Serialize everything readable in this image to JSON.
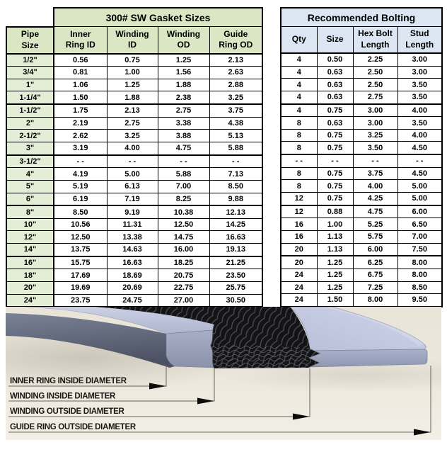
{
  "gasket_table": {
    "title": "300# SW Gasket Sizes",
    "headers": [
      [
        "Pipe",
        "Size"
      ],
      [
        "Inner",
        "Ring ID"
      ],
      [
        "Winding",
        "ID"
      ],
      [
        "Winding",
        "OD"
      ],
      [
        "Guide",
        "Ring OD"
      ]
    ],
    "rows": [
      [
        "1/2\"",
        "0.56",
        "0.75",
        "1.25",
        "2.13"
      ],
      [
        "3/4\"",
        "0.81",
        "1.00",
        "1.56",
        "2.63"
      ],
      [
        "1\"",
        "1.06",
        "1.25",
        "1.88",
        "2.88"
      ],
      [
        "1-1/4\"",
        "1.50",
        "1.88",
        "2.38",
        "3.25"
      ],
      [
        "1-1/2\"",
        "1.75",
        "2.13",
        "2.75",
        "3.75"
      ],
      [
        "2\"",
        "2.19",
        "2.75",
        "3.38",
        "4.38"
      ],
      [
        "2-1/2\"",
        "2.62",
        "3.25",
        "3.88",
        "5.13"
      ],
      [
        "3\"",
        "3.19",
        "4.00",
        "4.75",
        "5.88"
      ],
      [
        "3-1/2\"",
        "- -",
        "- -",
        "- -",
        "- -"
      ],
      [
        "4\"",
        "4.19",
        "5.00",
        "5.88",
        "7.13"
      ],
      [
        "5\"",
        "5.19",
        "6.13",
        "7.00",
        "8.50"
      ],
      [
        "6\"",
        "6.19",
        "7.19",
        "8.25",
        "9.88"
      ],
      [
        "8\"",
        "8.50",
        "9.19",
        "10.38",
        "12.13"
      ],
      [
        "10\"",
        "10.56",
        "11.31",
        "12.50",
        "14.25"
      ],
      [
        "12\"",
        "12.50",
        "13.38",
        "14.75",
        "16.63"
      ],
      [
        "14\"",
        "13.75",
        "14.63",
        "16.00",
        "19.13"
      ],
      [
        "16\"",
        "15.75",
        "16.63",
        "18.25",
        "21.25"
      ],
      [
        "18\"",
        "17.69",
        "18.69",
        "20.75",
        "23.50"
      ],
      [
        "20\"",
        "19.69",
        "20.69",
        "22.75",
        "25.75"
      ],
      [
        "24\"",
        "23.75",
        "24.75",
        "27.00",
        "30.50"
      ]
    ]
  },
  "bolting_table": {
    "title": "Recommended Bolting",
    "headers": [
      [
        "Qty"
      ],
      [
        "Size"
      ],
      [
        "Hex Bolt",
        "Length"
      ],
      [
        "Stud",
        "Length"
      ]
    ],
    "rows": [
      [
        "4",
        "0.50",
        "2.25",
        "3.00"
      ],
      [
        "4",
        "0.63",
        "2.50",
        "3.00"
      ],
      [
        "4",
        "0.63",
        "2.50",
        "3.50"
      ],
      [
        "4",
        "0.63",
        "2.75",
        "3.50"
      ],
      [
        "4",
        "0.75",
        "3.00",
        "4.00"
      ],
      [
        "8",
        "0.63",
        "3.00",
        "3.50"
      ],
      [
        "8",
        "0.75",
        "3.25",
        "4.00"
      ],
      [
        "8",
        "0.75",
        "3.50",
        "4.50"
      ],
      [
        "- -",
        "- -",
        "- -",
        "- -"
      ],
      [
        "8",
        "0.75",
        "3.75",
        "4.50"
      ],
      [
        "8",
        "0.75",
        "4.00",
        "5.00"
      ],
      [
        "12",
        "0.75",
        "4.25",
        "5.00"
      ],
      [
        "12",
        "0.88",
        "4.75",
        "6.00"
      ],
      [
        "16",
        "1.00",
        "5.25",
        "6.50"
      ],
      [
        "16",
        "1.13",
        "5.75",
        "7.00"
      ],
      [
        "20",
        "1.13",
        "6.00",
        "7.50"
      ],
      [
        "20",
        "1.25",
        "6.25",
        "8.00"
      ],
      [
        "24",
        "1.25",
        "6.75",
        "8.00"
      ],
      [
        "24",
        "1.25",
        "7.25",
        "8.50"
      ],
      [
        "24",
        "1.50",
        "8.00",
        "9.50"
      ]
    ]
  },
  "diagram": {
    "labels": [
      "INNER RING INSIDE DIAMETER",
      "WINDING INSIDE DIAMETER",
      "WINDING OUTSIDE DIAMETER",
      "GUIDE RING OUTSIDE DIAMETER"
    ]
  },
  "colors": {
    "gasket_header_green": "#dbe6c4",
    "gasket_col_green": "#e4eed6",
    "bolting_header_blue": "#dce6f2",
    "guide_ring_lavender": "#c6cbe0",
    "winding_black": "#141417",
    "diagram_background": "#ece8dd"
  }
}
